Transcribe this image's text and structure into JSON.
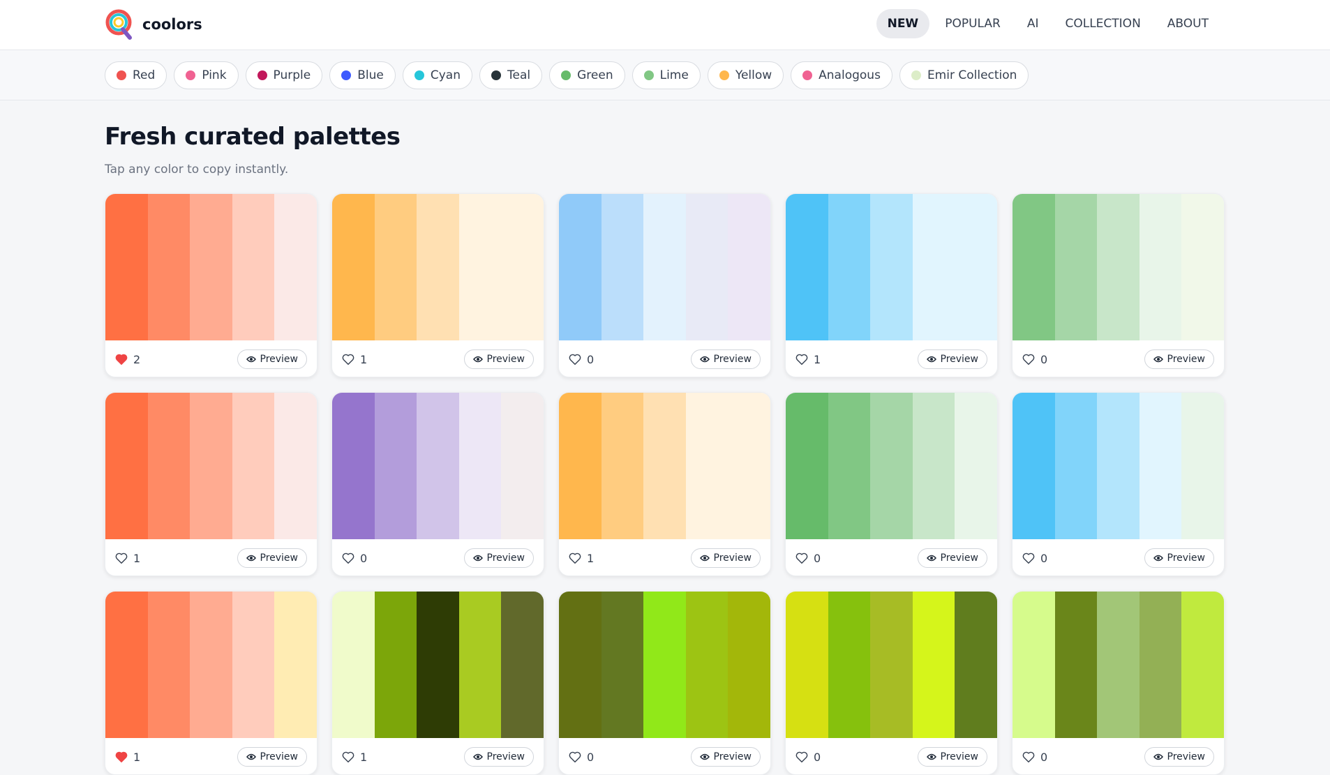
{
  "header": {
    "brand": "coolors",
    "nav": [
      "NEW",
      "POPULAR",
      "AI",
      "COLLECTION",
      "ABOUT"
    ],
    "active_nav": 0
  },
  "filters": [
    {
      "label": "Red",
      "color": "#ef5350"
    },
    {
      "label": "Pink",
      "color": "#f06292"
    },
    {
      "label": "Purple",
      "color": "#c2185b"
    },
    {
      "label": "Blue",
      "color": "#3d5afe"
    },
    {
      "label": "Cyan",
      "color": "#26c6da"
    },
    {
      "label": "Teal",
      "color": "#263238"
    },
    {
      "label": "Green",
      "color": "#66bb6a"
    },
    {
      "label": "Lime",
      "color": "#81c784"
    },
    {
      "label": "Yellow",
      "color": "#ffb74d"
    },
    {
      "label": "Analogous",
      "color": "#f06292"
    },
    {
      "label": "Emir Collection",
      "color": "#dcedc8"
    }
  ],
  "main": {
    "title": "Fresh curated palettes",
    "subtitle": "Tap any color to copy instantly.",
    "preview_label": "Preview",
    "palettes": [
      {
        "colors": [
          "#FF7043",
          "#FF8A65",
          "#FFAB91",
          "#FFCCBC",
          "#FBE9E7"
        ],
        "likes": 2,
        "liked": true
      },
      {
        "colors": [
          "#FFB74D",
          "#FFCC80",
          "#FFE0B2",
          "#FFF3E0",
          "#FFF3E0"
        ],
        "likes": 1,
        "liked": false
      },
      {
        "colors": [
          "#90CAF9",
          "#BBDEFB",
          "#E3F2FD",
          "#E8EAF6",
          "#EDE7F6"
        ],
        "likes": 0,
        "liked": false
      },
      {
        "colors": [
          "#4FC3F7",
          "#81D4FA",
          "#B3E5FC",
          "#E1F5FE",
          "#E1F5FE"
        ],
        "likes": 1,
        "liked": false
      },
      {
        "colors": [
          "#81C784",
          "#A5D6A7",
          "#C8E6C9",
          "#E8F5E9",
          "#F1F8E9"
        ],
        "likes": 0,
        "liked": false
      },
      {
        "colors": [
          "#FF7043",
          "#FF8A65",
          "#FFAB91",
          "#FFCCBC",
          "#FBE9E7"
        ],
        "likes": 1,
        "liked": false
      },
      {
        "colors": [
          "#9575CD",
          "#B39DDB",
          "#D1C4E9",
          "#EDE7F6",
          "#F3EDEE"
        ],
        "likes": 0,
        "liked": false
      },
      {
        "colors": [
          "#FFB74D",
          "#FFCC80",
          "#FFE0B2",
          "#FFF3E0",
          "#FFF3E0"
        ],
        "likes": 1,
        "liked": false
      },
      {
        "colors": [
          "#66BB6A",
          "#81C784",
          "#A5D6A7",
          "#C8E6C9",
          "#E8F5E9"
        ],
        "likes": 0,
        "liked": false
      },
      {
        "colors": [
          "#4FC3F7",
          "#81D4FA",
          "#B3E5FC",
          "#E1F5FE",
          "#E8F5E9"
        ],
        "likes": 0,
        "liked": false
      },
      {
        "colors": [
          "#FF7043",
          "#FF8A65",
          "#FFAB91",
          "#FFCCBC",
          "#FFECB3"
        ],
        "likes": 1,
        "liked": true
      },
      {
        "colors": [
          "#F0FBCB",
          "#7CA60A",
          "#2E3C05",
          "#A9CB22",
          "#61692B"
        ],
        "likes": 1,
        "liked": false
      },
      {
        "colors": [
          "#637013",
          "#637822",
          "#91E819",
          "#9DC413",
          "#A3B70A"
        ],
        "likes": 0,
        "liked": false
      },
      {
        "colors": [
          "#D6E012",
          "#86C10D",
          "#A7BC25",
          "#D5F51B",
          "#607D1E"
        ],
        "likes": 0,
        "liked": false
      },
      {
        "colors": [
          "#D6FB8C",
          "#6A861A",
          "#A2C677",
          "#93B055",
          "#C0EA3E"
        ],
        "likes": 0,
        "liked": false
      }
    ]
  }
}
